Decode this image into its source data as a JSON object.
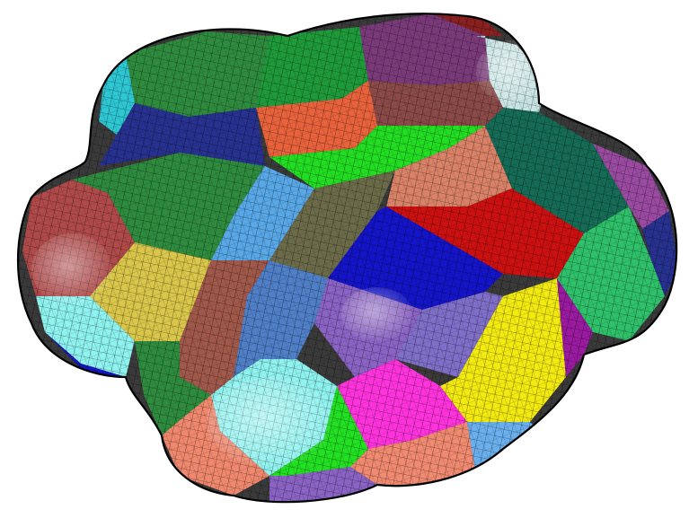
{
  "figure": {
    "subject": "hex-mesh-blob",
    "outline_color": "#000000",
    "grid_line_color": "#000000",
    "background": "#ffffff"
  },
  "patch_colors": {
    "green": "#2e8b3e",
    "dark_green": "#1f6f2d",
    "cyan": "#2ec7d4",
    "navy": "#27318f",
    "orange": "#e8623c",
    "purple": "#7a3a7a",
    "maroon": "#8b2020",
    "salmon": "#d98268",
    "light_blue": "#58a7e6",
    "olive": "#6b6b4a",
    "royal_blue": "#1414c8",
    "red": "#cc1010",
    "teal": "#156b55",
    "mint": "#2fc06a",
    "gold": "#d9c64a",
    "pale_cyan": "#8ef2ef",
    "brown": "#a0584a",
    "lavender": "#8a63c4",
    "steel": "#4f7fc7",
    "yellow": "#f2ea10",
    "magenta": "#c21fc2",
    "pink_magenta": "#ff33dd",
    "lime": "#22e022",
    "coral": "#f0886e",
    "sky": "#6ab0ee",
    "violet": "#9a1aa0",
    "bright_green": "#14e614"
  }
}
